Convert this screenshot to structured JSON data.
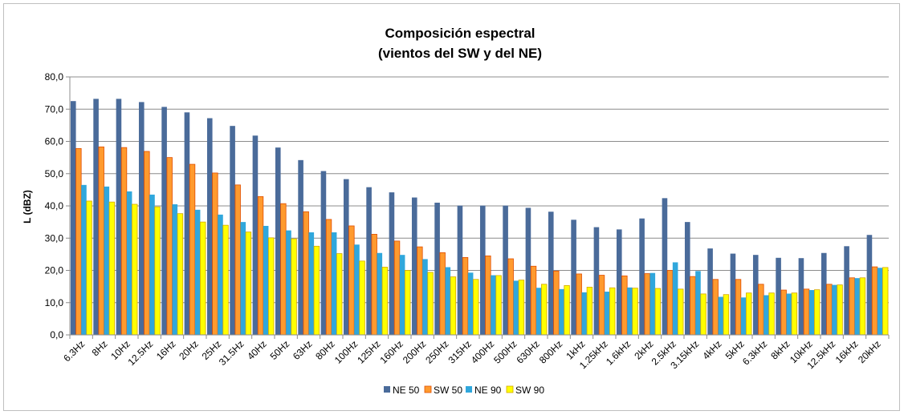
{
  "chart_data": {
    "type": "bar",
    "title_line1": "Composición espectral",
    "title_line2": "(vientos del SW y del NE)",
    "xlabel": "",
    "ylabel": "L (dBZ)",
    "ylim": [
      0,
      80
    ],
    "yticks": [
      "0,0",
      "10,0",
      "20,0",
      "30,0",
      "40,0",
      "50,0",
      "60,0",
      "70,0",
      "80,0"
    ],
    "grid": true,
    "legend_position": "bottom",
    "categories": [
      "6.3Hz",
      "8Hz",
      "10Hz",
      "12.5Hz",
      "16Hz",
      "20Hz",
      "25Hz",
      "31.5Hz",
      "40Hz",
      "50Hz",
      "63Hz",
      "80Hz",
      "100Hz",
      "125Hz",
      "160Hz",
      "200Hz",
      "250Hz",
      "315Hz",
      "400Hz",
      "500Hz",
      "630Hz",
      "800Hz",
      "1kHz",
      "1.25kHz",
      "1.6kHz",
      "2kHz",
      "2.5kHz",
      "3.15kHz",
      "4kHz",
      "5kHz",
      "6.3kHz",
      "8kHz",
      "10kHz",
      "12.5kHz",
      "16kHz",
      "20kHz"
    ],
    "series": [
      {
        "name": "NE 50",
        "color": "#4a6b9a",
        "values": [
          72.5,
          73.2,
          73.2,
          72.2,
          70.7,
          69.0,
          67.2,
          64.8,
          61.8,
          58.1,
          54.2,
          50.8,
          48.3,
          45.8,
          44.2,
          42.6,
          41.0,
          40.1,
          40.1,
          40.1,
          39.4,
          38.2,
          35.7,
          33.4,
          32.7,
          36.1,
          42.4,
          35.0,
          26.8,
          25.2,
          24.8,
          23.9,
          23.8,
          25.4,
          27.5,
          31.0
        ]
      },
      {
        "name": "SW 50",
        "color": "#ff9a2e",
        "values": [
          57.8,
          58.3,
          58.1,
          56.9,
          55.0,
          52.9,
          50.2,
          46.5,
          42.9,
          40.7,
          38.2,
          35.8,
          33.8,
          31.2,
          29.1,
          27.3,
          25.5,
          24.0,
          24.5,
          23.6,
          21.3,
          19.8,
          18.9,
          18.5,
          18.3,
          19.0,
          20.0,
          18.1,
          17.2,
          17.2,
          15.7,
          13.9,
          14.2,
          15.7,
          17.7,
          21.1
        ]
      },
      {
        "name": "NE 90",
        "color": "#30a7dc",
        "values": [
          46.5,
          46.0,
          44.5,
          43.5,
          40.5,
          38.8,
          37.3,
          35.0,
          33.8,
          32.4,
          31.8,
          31.8,
          28.0,
          25.4,
          24.8,
          23.5,
          21.0,
          19.3,
          18.5,
          16.8,
          14.6,
          14.2,
          13.2,
          13.4,
          14.7,
          19.2,
          22.5,
          19.8,
          11.8,
          11.6,
          12.3,
          12.8,
          13.9,
          15.5,
          17.6,
          20.8
        ]
      },
      {
        "name": "SW 90",
        "color": "#ffff00",
        "values": [
          41.5,
          41.2,
          40.5,
          39.7,
          37.6,
          35.0,
          34.0,
          31.9,
          30.1,
          29.8,
          27.5,
          25.2,
          22.9,
          21.0,
          20.0,
          19.4,
          18.0,
          17.2,
          18.4,
          17.0,
          15.7,
          15.3,
          14.8,
          14.6,
          14.5,
          14.4,
          14.2,
          12.7,
          12.5,
          13.0,
          13.0,
          13.0,
          14.0,
          15.5,
          17.7,
          20.9
        ]
      }
    ]
  }
}
